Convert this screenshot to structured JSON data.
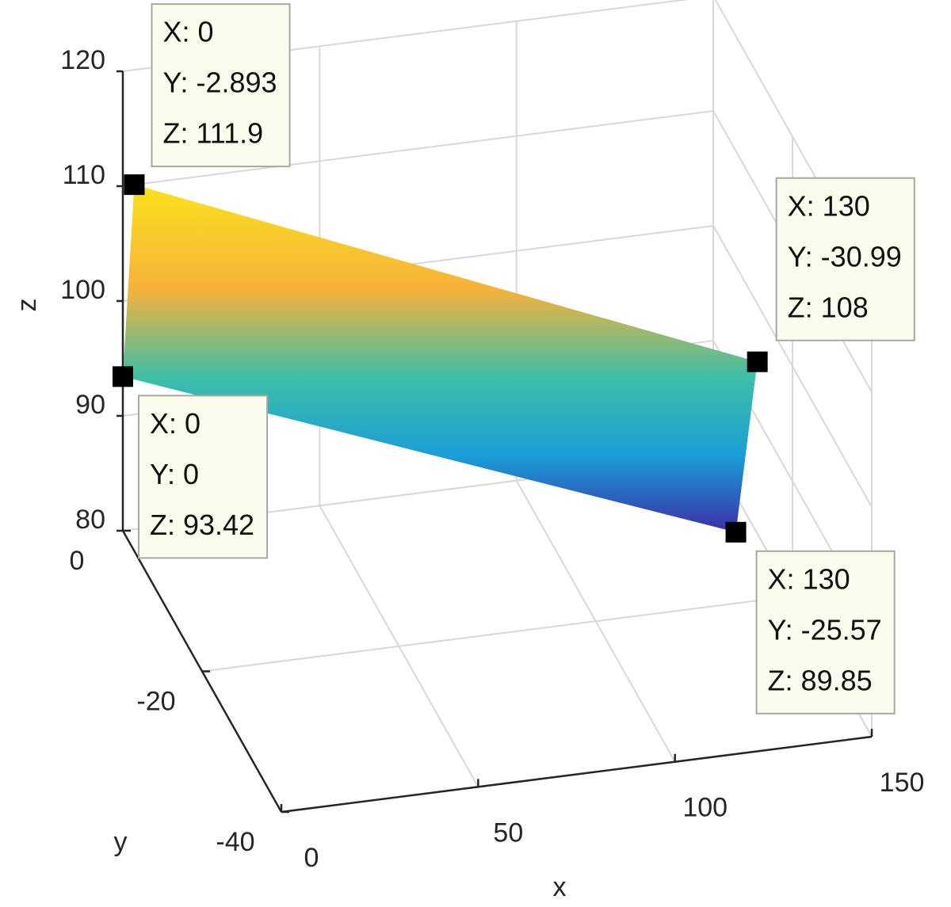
{
  "chart_data": {
    "type": "surface3d",
    "xlabel": "x",
    "ylabel": "y",
    "zlabel": "z",
    "xlim": [
      0,
      150
    ],
    "ylim": [
      -40,
      0
    ],
    "zlim": [
      80,
      120
    ],
    "xticks": [
      0,
      50,
      100,
      150
    ],
    "yticks": [
      0,
      -20,
      -40
    ],
    "zticks": [
      80,
      90,
      100,
      110,
      120
    ],
    "grid": true,
    "points": [
      {
        "x": 0,
        "y": -2.893,
        "z": 111.9,
        "labels": [
          "X: 0",
          "Y: -2.893",
          "Z: 111.9"
        ]
      },
      {
        "x": 0,
        "y": 0,
        "z": 93.42,
        "labels": [
          "X: 0",
          "Y: 0",
          "Z: 93.42"
        ]
      },
      {
        "x": 130,
        "y": -30.99,
        "z": 108,
        "labels": [
          "X: 130",
          "Y: -30.99",
          "Z: 108"
        ]
      },
      {
        "x": 130,
        "y": -25.57,
        "z": 89.85,
        "labels": [
          "X: 130",
          "Y: -25.57",
          "Z: 89.85"
        ]
      }
    ]
  }
}
